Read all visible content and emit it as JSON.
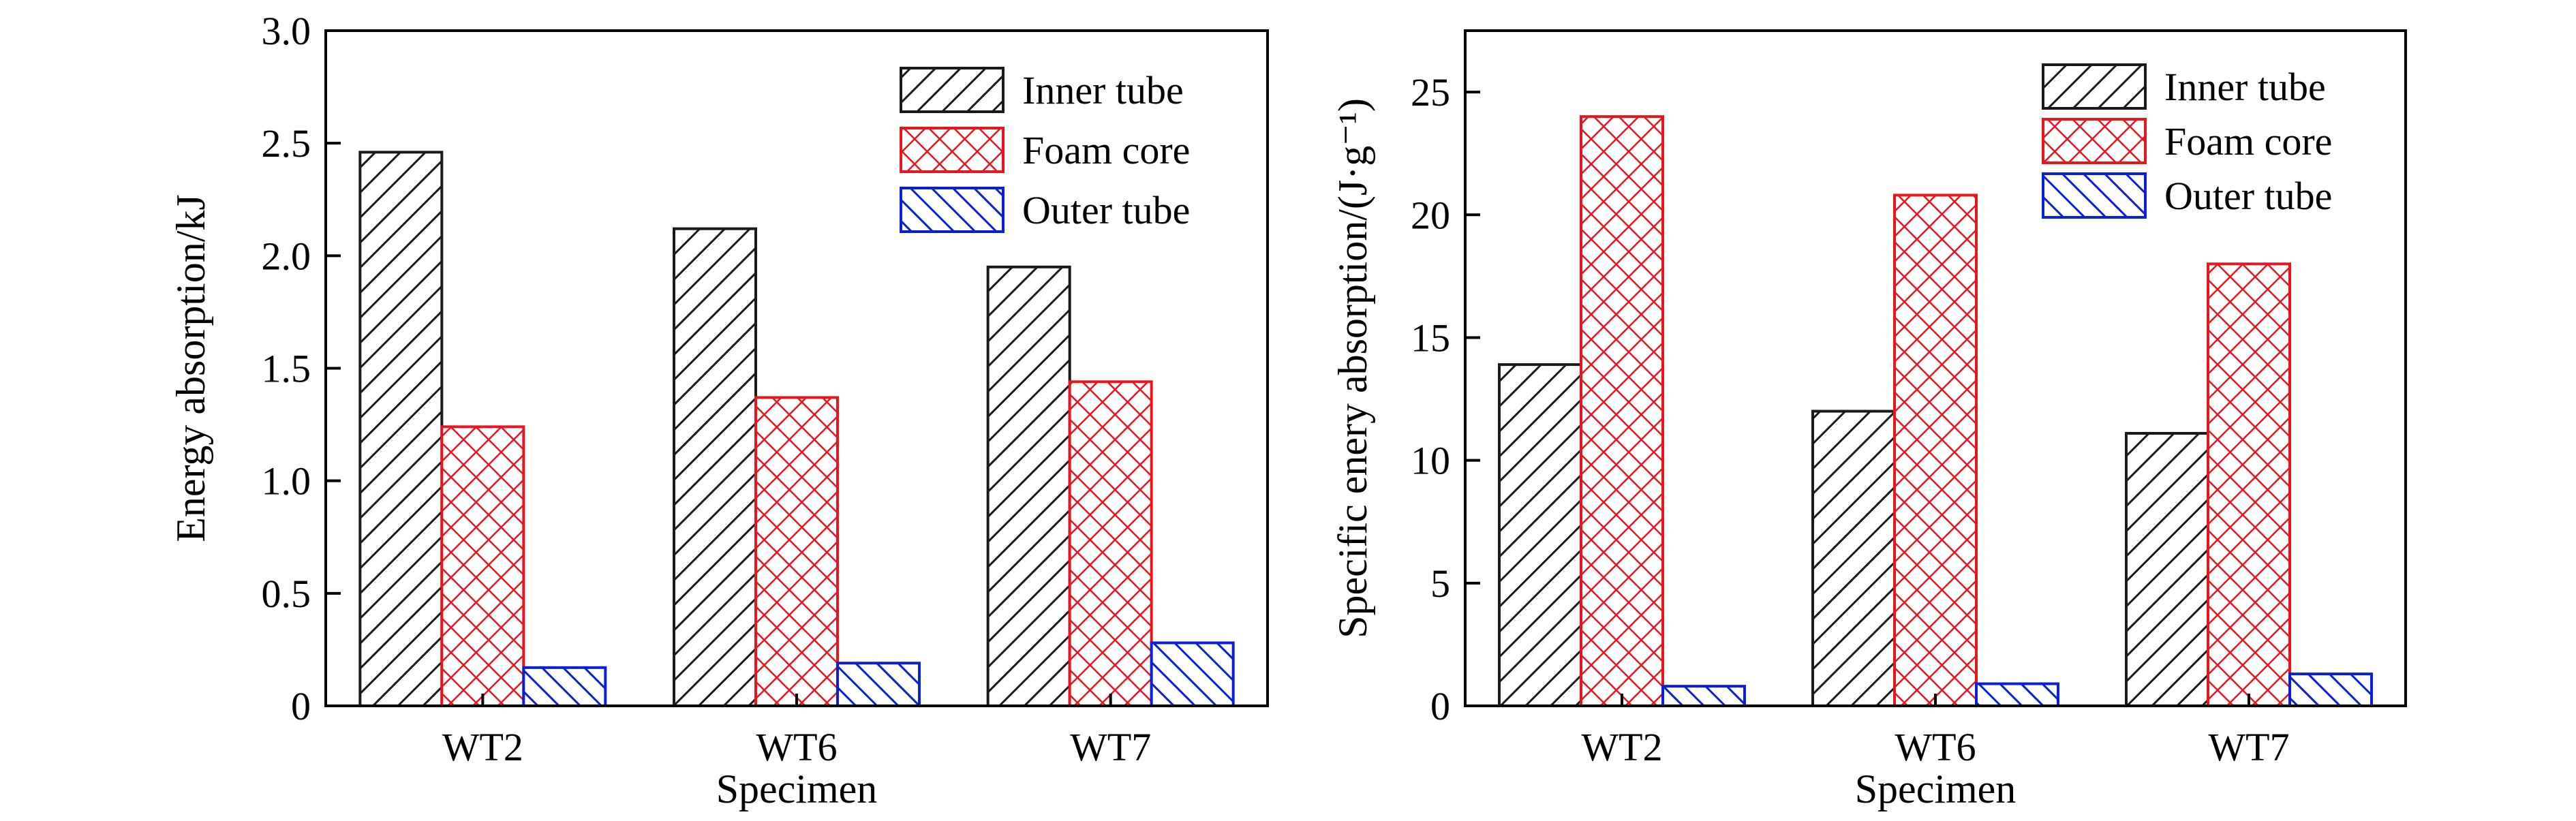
{
  "colors": {
    "inner_tube": "#1a1a1a",
    "foam_core": "#e8141e",
    "outer_tube": "#0a1fd6",
    "axis": "#000000",
    "background": "#ffffff"
  },
  "chart_data": [
    {
      "type": "bar",
      "categories": [
        "WT2",
        "WT6",
        "WT7"
      ],
      "xlabel": "Specimen",
      "ylabel": "Energy absorption/kJ",
      "ylim": [
        0,
        3.0
      ],
      "yticks": [
        0,
        0.5,
        1.0,
        1.5,
        2.0,
        2.5,
        3.0
      ],
      "ytick_labels": [
        "0",
        "0.5",
        "1.0",
        "1.5",
        "2.0",
        "2.5",
        "3.0"
      ],
      "legend_position": "top-right",
      "grid": false,
      "series": [
        {
          "name": "Inner tube",
          "pattern": "diagonal-hatch",
          "values": [
            2.46,
            2.12,
            1.95
          ]
        },
        {
          "name": "Foam core",
          "pattern": "cross-hatch",
          "values": [
            1.24,
            1.37,
            1.44
          ]
        },
        {
          "name": "Outer tube",
          "pattern": "back-diagonal-hatch",
          "values": [
            0.17,
            0.19,
            0.28
          ]
        }
      ]
    },
    {
      "type": "bar",
      "categories": [
        "WT2",
        "WT6",
        "WT7"
      ],
      "xlabel": "Specimen",
      "ylabel": "Specific enery absorption/(J·g⁻¹)",
      "ylim": [
        0,
        27.5
      ],
      "yticks": [
        0,
        5,
        10,
        15,
        20,
        25
      ],
      "ytick_labels": [
        "0",
        "5",
        "10",
        "15",
        "20",
        "25"
      ],
      "legend_position": "top-right",
      "grid": false,
      "series": [
        {
          "name": "Inner tube",
          "pattern": "diagonal-hatch",
          "values": [
            13.9,
            12.0,
            11.1
          ]
        },
        {
          "name": "Foam core",
          "pattern": "cross-hatch",
          "values": [
            24.0,
            20.8,
            18.0
          ]
        },
        {
          "name": "Outer tube",
          "pattern": "back-diagonal-hatch",
          "values": [
            0.8,
            0.9,
            1.3
          ]
        }
      ]
    }
  ]
}
